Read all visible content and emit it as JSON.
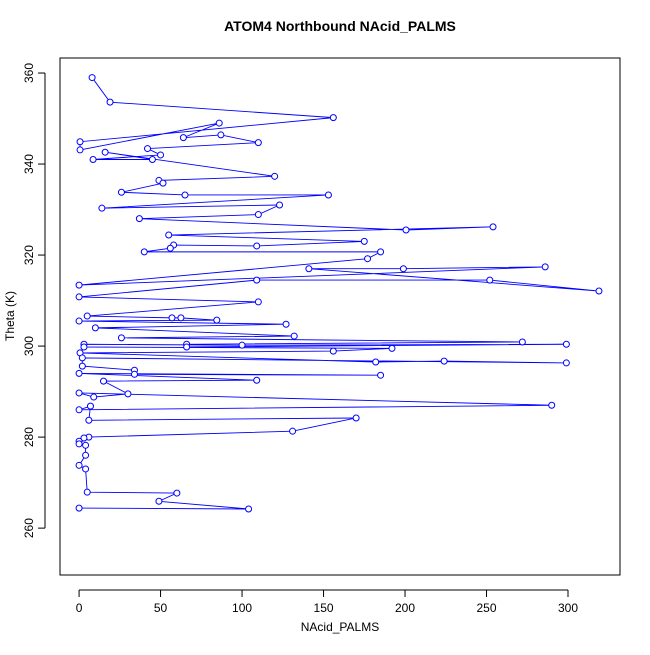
{
  "chart_data": {
    "type": "line",
    "title": "ATOM4 Northbound NAcid_PALMS",
    "x_label": "NAcid_PALMS",
    "y_label": "Theta (K)",
    "color": "#0000ff",
    "x": [
      8,
      19,
      156,
      0.6,
      0.6,
      86,
      64,
      87,
      110,
      42,
      50,
      8.6,
      45,
      16,
      120,
      49,
      51.5,
      26,
      65,
      153,
      14,
      123,
      110,
      37,
      200.6,
      254,
      55,
      175,
      109,
      58,
      56,
      40,
      185,
      177,
      0,
      286,
      199,
      141,
      319,
      252,
      109,
      0,
      110,
      5,
      57,
      62.5,
      84.5,
      0,
      127,
      10,
      132,
      26,
      272,
      66,
      66,
      299,
      100,
      3,
      3,
      192,
      156,
      0.6,
      182,
      224,
      299,
      2,
      2,
      34,
      34,
      185,
      0,
      109,
      15,
      30,
      9,
      0,
      290,
      0,
      7,
      6,
      170,
      131,
      6,
      3,
      0,
      0,
      4,
      4,
      0,
      4,
      5,
      60,
      49,
      104,
      0
    ],
    "values": [
      359,
      353.6,
      350.2,
      344.9,
      343.1,
      349,
      345.8,
      346.4,
      344.7,
      343.4,
      342,
      341,
      341,
      342.6,
      337.3,
      336.4,
      335.8,
      333.8,
      333.2,
      333.2,
      330.3,
      331,
      328.9,
      328,
      325.5,
      326.2,
      324.4,
      323,
      322,
      322.2,
      321.5,
      320.7,
      320.7,
      319.2,
      313.4,
      317.4,
      317,
      317,
      312.1,
      314.5,
      314.5,
      310.8,
      309.7,
      306.6,
      306.2,
      306.2,
      305.7,
      305.5,
      304.8,
      304,
      302.2,
      301.8,
      300.9,
      300.4,
      299.8,
      300.4,
      300.2,
      300.4,
      299.8,
      299.5,
      298.9,
      298.5,
      296.5,
      296.7,
      296.3,
      297.4,
      295.6,
      294.7,
      293.8,
      293.6,
      294,
      292.5,
      292.3,
      289.5,
      288.8,
      289.7,
      287,
      286,
      286.8,
      283.7,
      284.2,
      281.3,
      280,
      279.8,
      279.1,
      278.5,
      278.2,
      276,
      273.8,
      273,
      267.9,
      267.7,
      265.9,
      264.2,
      264.4
    ],
    "xlim": [
      -11.7,
      331.9
    ],
    "ylim": [
      249.7,
      363.3
    ],
    "xticks": [
      0,
      50,
      100,
      150,
      200,
      250,
      300
    ],
    "yticks": [
      260,
      280,
      300,
      320,
      340,
      360
    ]
  }
}
